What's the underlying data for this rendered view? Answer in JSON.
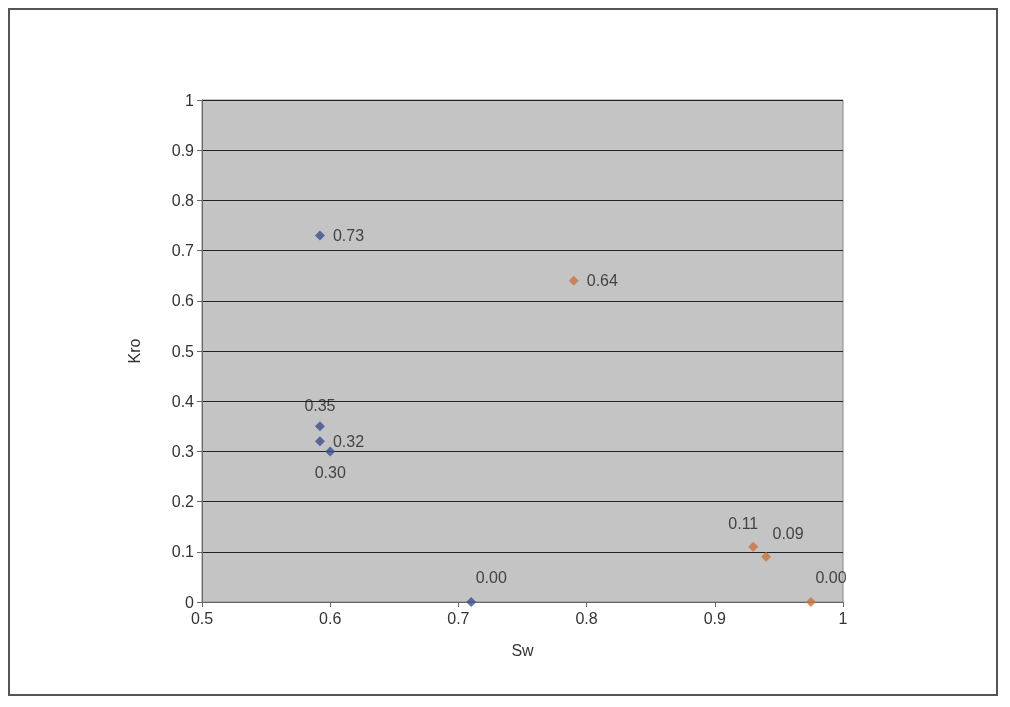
{
  "chart_data": {
    "type": "scatter",
    "xlabel": "Sw",
    "ylabel": "Kro",
    "xlim": [
      0.5,
      1
    ],
    "xticks": [
      0.5,
      0.6,
      0.7,
      0.8,
      0.9,
      1
    ],
    "ylim": [
      0,
      1
    ],
    "yticks": [
      0,
      0.1,
      0.2,
      0.3,
      0.4,
      0.5,
      0.6,
      0.7,
      0.8,
      0.9,
      1
    ],
    "grid": "y",
    "marker": "diamond",
    "series": [
      {
        "color": "#3f4f8f",
        "x": [
          0.592,
          0.592,
          0.592,
          0.6,
          0.71
        ],
        "values": [
          0.73,
          0.35,
          0.32,
          0.3,
          0
        ],
        "value_labels": [
          "0.73",
          "0.35",
          "0.32",
          "0.30",
          "0.00"
        ]
      },
      {
        "color": "#c8743f",
        "x": [
          0.79,
          0.93,
          0.94,
          0.975
        ],
        "values": [
          0.64,
          0.11,
          0.09,
          0
        ],
        "value_labels": [
          "0.64",
          "0.11",
          "0.09",
          "0.00"
        ]
      }
    ]
  }
}
